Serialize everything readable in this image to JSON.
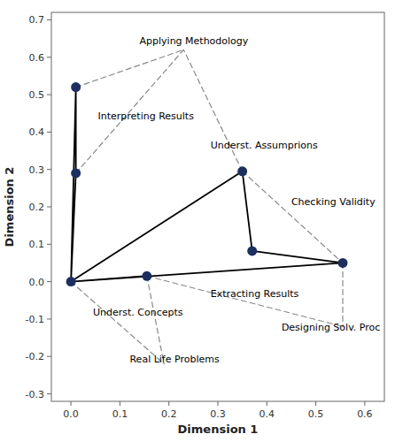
{
  "chart_data": {
    "type": "scatter",
    "xlabel": "Dimension 1",
    "ylabel": "Dimension 2",
    "xlim": [
      -0.04,
      0.64
    ],
    "ylim": [
      -0.32,
      0.72
    ],
    "xticks": [
      {
        "value": 0,
        "label": "0.0"
      },
      0.1,
      0.2,
      0.3,
      0.4,
      0.5,
      0.6
    ],
    "yticks": [
      -0.3,
      -0.2,
      -0.1,
      {
        "value": 0,
        "label": "0.0"
      },
      0.1,
      0.2,
      0.3,
      0.4,
      0.5,
      0.6,
      0.7
    ],
    "grid": false,
    "series": [
      {
        "type": "line",
        "line_style": "solid",
        "color": "black",
        "x": [
          0,
          0.01,
          null,
          0.01,
          0.01,
          null,
          0.01,
          0,
          null,
          0,
          0.35,
          null,
          0.35,
          0.37,
          null,
          0.37,
          0.555,
          null,
          0.555,
          0,
          null,
          0,
          0.155
        ],
        "values": [
          0,
          0.52,
          null,
          0.52,
          0.29,
          null,
          0.29,
          0,
          null,
          0,
          0.295,
          null,
          0.295,
          0.082,
          null,
          0.082,
          0.05,
          null,
          0.05,
          0,
          null,
          0,
          0.015
        ]
      },
      {
        "type": "line",
        "line_style": "dashed",
        "color": "#888888",
        "x": [
          0.01,
          0.23,
          null,
          0.01,
          0.23,
          null,
          0.35,
          0.23,
          null,
          0.35,
          0.555,
          null,
          0.555,
          0.555,
          null,
          0.155,
          0.555,
          null,
          0.155,
          0.19,
          null,
          0,
          0.19,
          null,
          0,
          0.155
        ],
        "values": [
          0.52,
          0.62,
          null,
          0.29,
          0.62,
          null,
          0.295,
          0.62,
          null,
          0.295,
          0.05,
          null,
          0.05,
          -0.12,
          null,
          0.015,
          -0.12,
          null,
          0.015,
          -0.22,
          null,
          0,
          -0.22,
          null,
          0,
          0.015
        ]
      },
      {
        "type": "scatter",
        "marker": "circle",
        "color": "#1c2f5e",
        "x": [
          0.01,
          0.01,
          0.35,
          0.37,
          0.555,
          0.155,
          0
        ],
        "values": [
          0.52,
          0.29,
          0.295,
          0.082,
          0.05,
          0.015,
          0
        ]
      }
    ],
    "annotations": [
      {
        "label": "Applying Methodology",
        "x": 0.14,
        "y": 0.635
      },
      {
        "label": "Interpreting Results",
        "x": 0.055,
        "y": 0.435
      },
      {
        "label": "Underst. Assumprions",
        "x": 0.285,
        "y": 0.355
      },
      {
        "label": "Checking Validity",
        "x": 0.45,
        "y": 0.205
      },
      {
        "label": "Extracting Results",
        "x": 0.285,
        "y": -0.04
      },
      {
        "label": "Underst. Concepts",
        "x": 0.045,
        "y": -0.09
      },
      {
        "label": "Real Life Problems",
        "x": 0.12,
        "y": -0.215
      },
      {
        "label": "Designing Solv. Proc",
        "x": 0.43,
        "y": -0.13
      }
    ]
  }
}
